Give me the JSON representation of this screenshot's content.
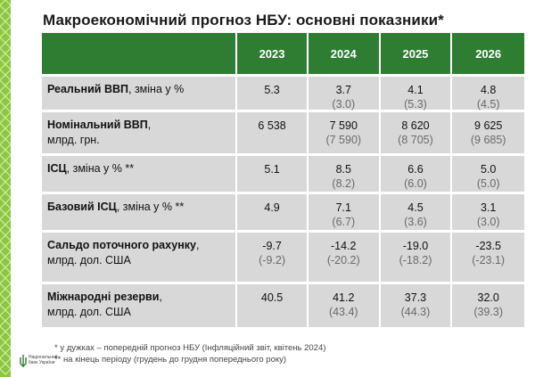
{
  "title": "Макроекономічний прогноз НБУ: основні показники*",
  "years": [
    "2023",
    "2024",
    "2025",
    "2026"
  ],
  "rows": [
    {
      "label_bold": "Реальний ВВП",
      "label_rest": ", зміна у %",
      "label_line2": "",
      "values": [
        "5.3",
        "3.7",
        "4.1",
        "4.8"
      ],
      "prev": [
        "",
        "(3.0)",
        "(5.3)",
        "(4.5)"
      ]
    },
    {
      "label_bold": "Номінальний ВВП",
      "label_rest": ",",
      "label_line2": "млрд. грн.",
      "values": [
        "6 538",
        "7 590",
        "8 620",
        "9 625"
      ],
      "prev": [
        "",
        "(7 590)",
        "(8 705)",
        "(9 685)"
      ]
    },
    {
      "label_bold": "ІСЦ",
      "label_rest": ", зміна у % **",
      "label_line2": "",
      "values": [
        "5.1",
        "8.5",
        "6.6",
        "5.0"
      ],
      "prev": [
        "",
        "(8.2)",
        "(6.0)",
        "(5.0)"
      ]
    },
    {
      "label_bold": "Базовий ІСЦ",
      "label_rest": ", зміна у % **",
      "label_line2": "",
      "values": [
        "4.9",
        "7.1",
        "4.5",
        "3.1"
      ],
      "prev": [
        "",
        "(6.7)",
        "(3.6)",
        "(3.0)"
      ]
    },
    {
      "label_bold": "Сальдо поточного рахунку",
      "label_rest": ",",
      "label_line2": "млрд. дол. США",
      "values": [
        "-9.7",
        "-14.2",
        "-19.0",
        "-23.5"
      ],
      "prev": [
        "(-9.2)",
        "(-20.2)",
        "(-18.2)",
        "(-23.1)"
      ]
    },
    {
      "label_bold": "Міжнародні резерви",
      "label_rest": ",",
      "label_line2": "млрд. дол. США",
      "values": [
        "40.5",
        "41.2",
        "37.3",
        "32.0"
      ],
      "prev": [
        "",
        "(43.4)",
        "(44.3)",
        "(39.3)"
      ]
    }
  ],
  "footnotes": [
    "* у дужках – попередній прогноз НБУ (Інфляційний звіт, квітень 2024)",
    "** на кінець періоду (грудень до грудня попереднього року)"
  ],
  "logo_text": "Національний банк України",
  "colors": {
    "header_green": "#2e7d32",
    "row_gray": "#d8d8d8",
    "accent_green": "#8dc63f"
  }
}
